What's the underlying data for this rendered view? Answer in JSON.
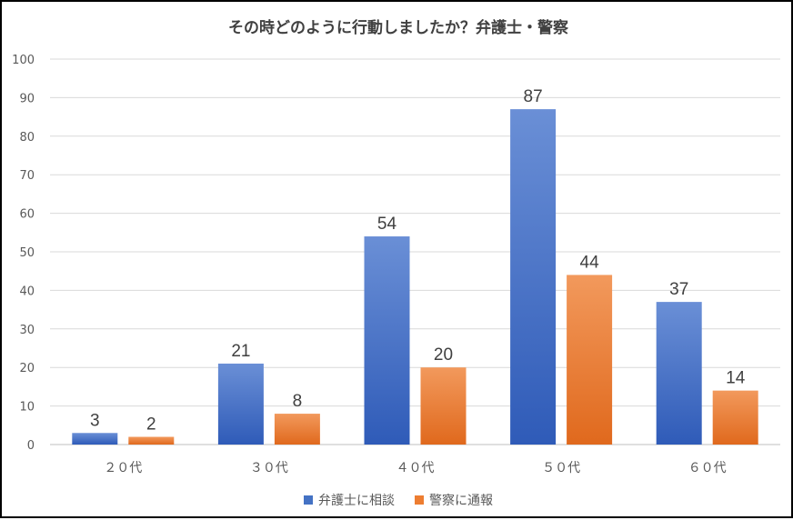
{
  "chart_data": {
    "type": "bar",
    "title": "その時どのように行動しましたか？弁護士・警察",
    "categories": [
      "２０代",
      "３０代",
      "４０代",
      "５０代",
      "６０代"
    ],
    "series": [
      {
        "name": "弁護士に相談",
        "values": [
          3,
          21,
          54,
          87,
          37
        ],
        "color": "#4472C4"
      },
      {
        "name": "警察に通報",
        "values": [
          2,
          8,
          20,
          44,
          14
        ],
        "color": "#ED7D31"
      }
    ],
    "ylim": [
      0,
      100
    ],
    "yticks": [
      0,
      10,
      20,
      30,
      40,
      50,
      60,
      70,
      80,
      90,
      100
    ],
    "grid": true,
    "legend_position": "bottom",
    "data_labels": true
  }
}
